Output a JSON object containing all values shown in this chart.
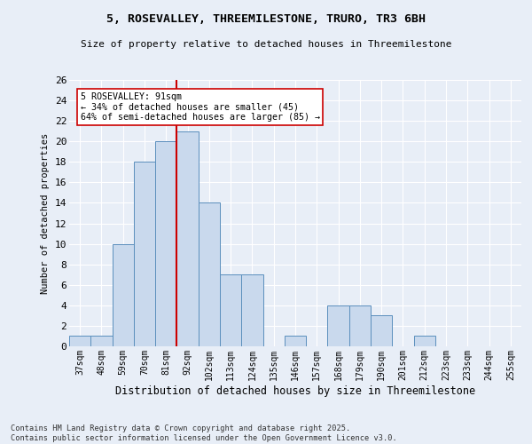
{
  "title1": "5, ROSEVALLEY, THREEMILESTONE, TRURO, TR3 6BH",
  "title2": "Size of property relative to detached houses in Threemilestone",
  "xlabel": "Distribution of detached houses by size in Threemilestone",
  "ylabel": "Number of detached properties",
  "bar_labels": [
    "37sqm",
    "48sqm",
    "59sqm",
    "70sqm",
    "81sqm",
    "92sqm",
    "102sqm",
    "113sqm",
    "124sqm",
    "135sqm",
    "146sqm",
    "157sqm",
    "168sqm",
    "179sqm",
    "190sqm",
    "201sqm",
    "212sqm",
    "223sqm",
    "233sqm",
    "244sqm",
    "255sqm"
  ],
  "bar_values": [
    1,
    1,
    10,
    18,
    20,
    21,
    14,
    7,
    7,
    0,
    1,
    0,
    4,
    4,
    3,
    0,
    1,
    0,
    0,
    0,
    0
  ],
  "bar_color": "#c9d9ed",
  "bar_edgecolor": "#5b8fbd",
  "background_color": "#e8eef7",
  "grid_color": "#ffffff",
  "vline_x_index": 5,
  "vline_color": "#cc0000",
  "annotation_text": "5 ROSEVALLEY: 91sqm\n← 34% of detached houses are smaller (45)\n64% of semi-detached houses are larger (85) →",
  "annotation_box_facecolor": "#ffffff",
  "annotation_box_edgecolor": "#cc0000",
  "ylim": [
    0,
    26
  ],
  "yticks": [
    0,
    2,
    4,
    6,
    8,
    10,
    12,
    14,
    16,
    18,
    20,
    22,
    24,
    26
  ],
  "footer1": "Contains HM Land Registry data © Crown copyright and database right 2025.",
  "footer2": "Contains public sector information licensed under the Open Government Licence v3.0."
}
